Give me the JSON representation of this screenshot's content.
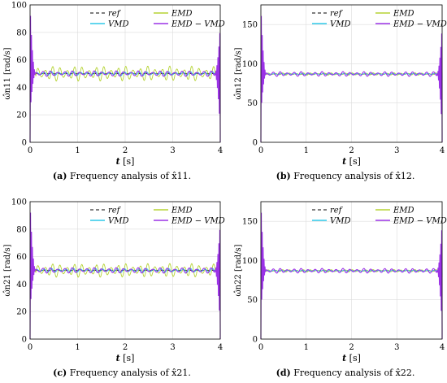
{
  "chart_data": [
    {
      "type": "line",
      "panel_label": "(a)",
      "caption": "Frequency analysis of x̂11.",
      "ylabel": "ω̂n11 [rad/s]",
      "xlabel": "t [s]",
      "xlim": [
        0,
        4
      ],
      "ylim": [
        0,
        100
      ],
      "yticks": [
        0,
        20,
        40,
        60,
        80,
        100
      ],
      "xticks": [
        0,
        1,
        2,
        3,
        4
      ],
      "grid": true,
      "legend_position": "top-right",
      "baseline": 50,
      "series": [
        {
          "name": "ref",
          "color": "#000000",
          "style": "dashed",
          "values": [
            50,
            50
          ]
        },
        {
          "name": "EMD",
          "color": "#b5d334",
          "style": "solid",
          "ripple_amplitude": 5.5,
          "end_range": [
            40,
            55
          ]
        },
        {
          "name": "VMD",
          "color": "#2ec8e8",
          "style": "solid",
          "ripple_amplitude": 1.5,
          "end_range": [
            45,
            52
          ]
        },
        {
          "name": "EMD−VMD",
          "color": "#9b32e6",
          "style": "solid",
          "ripple_amplitude": 2,
          "end_range": [
            0,
            100
          ]
        }
      ]
    },
    {
      "type": "line",
      "panel_label": "(b)",
      "caption": "Frequency analysis of x̂12.",
      "ylabel": "ω̂n12 [rad/s]",
      "xlabel": "t [s]",
      "xlim": [
        0,
        4
      ],
      "ylim": [
        0,
        175
      ],
      "yticks": [
        0,
        50,
        100,
        150
      ],
      "xticks": [
        0,
        1,
        2,
        3,
        4
      ],
      "grid": true,
      "legend_position": "top-right",
      "baseline": 87,
      "series": [
        {
          "name": "ref",
          "color": "#000000",
          "style": "dashed",
          "values": [
            87,
            87
          ]
        },
        {
          "name": "EMD",
          "color": "#b5d334",
          "style": "solid",
          "ripple_amplitude": 1.5,
          "end_range": [
            80,
            95
          ]
        },
        {
          "name": "VMD",
          "color": "#2ec8e8",
          "style": "solid",
          "ripple_amplitude": 1,
          "end_range": [
            82,
            92
          ]
        },
        {
          "name": "EMD−VMD",
          "color": "#9b32e6",
          "style": "solid",
          "ripple_amplitude": 3,
          "end_range": [
            0,
            175
          ]
        }
      ]
    },
    {
      "type": "line",
      "panel_label": "(c)",
      "caption": "Frequency analysis of x̂21.",
      "ylabel": "ω̂n21 [rad/s]",
      "xlabel": "t [s]",
      "xlim": [
        0,
        4
      ],
      "ylim": [
        0,
        100
      ],
      "yticks": [
        0,
        20,
        40,
        60,
        80,
        100
      ],
      "xticks": [
        0,
        1,
        2,
        3,
        4
      ],
      "grid": true,
      "legend_position": "top-right",
      "baseline": 50,
      "series": [
        {
          "name": "ref",
          "color": "#000000",
          "style": "dashed",
          "values": [
            50,
            50
          ]
        },
        {
          "name": "EMD",
          "color": "#b5d334",
          "style": "solid",
          "ripple_amplitude": 5,
          "end_range": [
            40,
            56
          ]
        },
        {
          "name": "VMD",
          "color": "#2ec8e8",
          "style": "solid",
          "ripple_amplitude": 1.5,
          "end_range": [
            45,
            52
          ]
        },
        {
          "name": "EMD−VMD",
          "color": "#9b32e6",
          "style": "solid",
          "ripple_amplitude": 2,
          "end_range": [
            0,
            100
          ]
        }
      ]
    },
    {
      "type": "line",
      "panel_label": "(d)",
      "caption": "Frequency analysis of x̂22.",
      "ylabel": "ω̂n22 [rad/s]",
      "xlabel": "t [s]",
      "xlim": [
        0,
        4
      ],
      "ylim": [
        0,
        175
      ],
      "yticks": [
        0,
        50,
        100,
        150
      ],
      "xticks": [
        0,
        1,
        2,
        3,
        4
      ],
      "grid": true,
      "legend_position": "top-right",
      "baseline": 87,
      "series": [
        {
          "name": "ref",
          "color": "#000000",
          "style": "dashed",
          "values": [
            87,
            87
          ]
        },
        {
          "name": "EMD",
          "color": "#b5d334",
          "style": "solid",
          "ripple_amplitude": 1.5,
          "end_range": [
            80,
            95
          ]
        },
        {
          "name": "VMD",
          "color": "#2ec8e8",
          "style": "solid",
          "ripple_amplitude": 1,
          "end_range": [
            82,
            92
          ]
        },
        {
          "name": "EMD−VMD",
          "color": "#9b32e6",
          "style": "solid",
          "ripple_amplitude": 3,
          "end_range": [
            0,
            175
          ]
        }
      ]
    }
  ]
}
